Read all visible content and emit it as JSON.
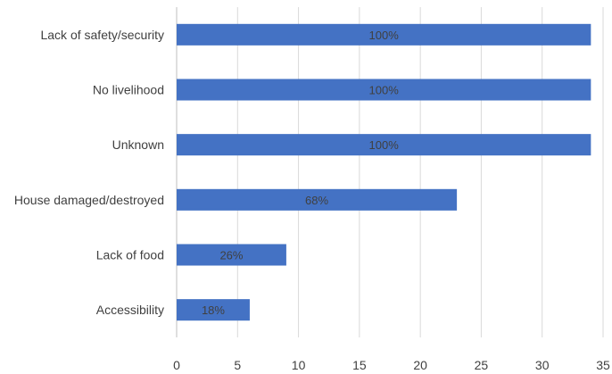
{
  "chart_data": {
    "type": "bar",
    "orientation": "horizontal",
    "categories": [
      "Lack of safety/security",
      "No livelihood",
      "Unknown",
      "House damaged/destroyed",
      "Lack of food",
      "Accessibility"
    ],
    "values": [
      34,
      34,
      34,
      23,
      9,
      6
    ],
    "data_labels": [
      "100%",
      "100%",
      "100%",
      "68%",
      "26%",
      "18%"
    ],
    "xlim": [
      0,
      35
    ],
    "x_ticks": [
      0,
      5,
      10,
      15,
      20,
      25,
      30,
      35
    ],
    "grid": true,
    "legend": "none",
    "bar_color": "#4472C4"
  }
}
